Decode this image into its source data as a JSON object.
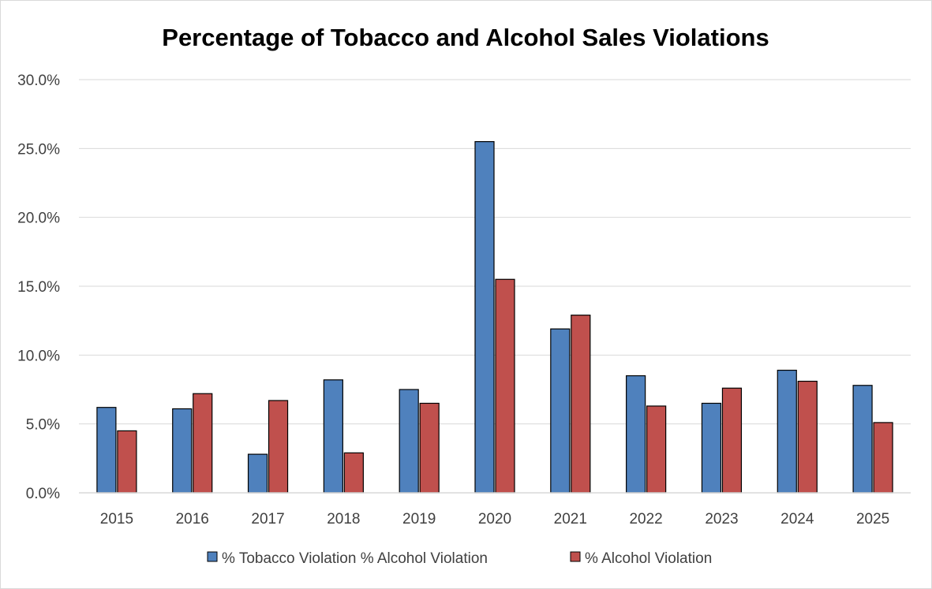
{
  "chart_data": {
    "type": "bar",
    "title": "Percentage of Tobacco and Alcohol Sales Violations",
    "xlabel": "",
    "ylabel": "",
    "categories": [
      "2015",
      "2016",
      "2017",
      "2018",
      "2019",
      "2020",
      "2021",
      "2022",
      "2023",
      "2024",
      "2025"
    ],
    "series": [
      {
        "name": "% Tobacco Violation % Alcohol Violation",
        "color": "#4F81BD",
        "values": [
          6.2,
          6.1,
          2.8,
          8.2,
          7.5,
          25.5,
          11.9,
          8.5,
          6.5,
          8.9,
          7.8
        ]
      },
      {
        "name": "% Alcohol Violation",
        "color": "#C0504D",
        "values": [
          4.5,
          7.2,
          6.7,
          2.9,
          6.5,
          15.5,
          12.9,
          6.3,
          7.6,
          8.1,
          5.1
        ]
      }
    ],
    "ylim": [
      0,
      30
    ],
    "yticks": [
      "0.0%",
      "5.0%",
      "10.0%",
      "15.0%",
      "20.0%",
      "25.0%",
      "30.0%"
    ],
    "grid": true,
    "legend_position": "bottom"
  }
}
